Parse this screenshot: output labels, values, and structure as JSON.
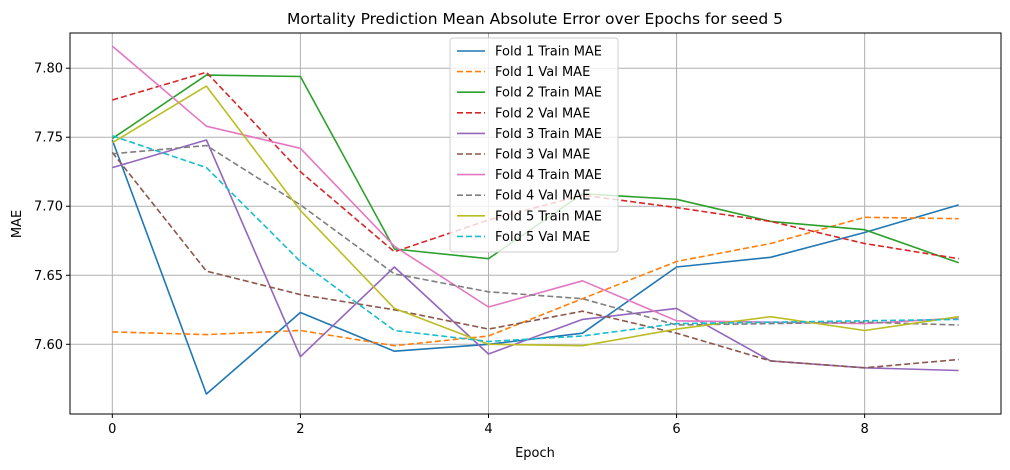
{
  "chart_data": {
    "type": "line",
    "title": "Mortality Prediction Mean Absolute Error over Epochs for seed 5",
    "xlabel": "Epoch",
    "ylabel": "MAE",
    "xlim": [
      -0.45,
      9.45
    ],
    "ylim": [
      7.5495,
      7.8255
    ],
    "xticks": [
      0,
      2,
      4,
      6,
      8
    ],
    "yticks": [
      7.6,
      7.65,
      7.7,
      7.75,
      7.8
    ],
    "ytick_labels": [
      "7.60",
      "7.65",
      "7.70",
      "7.75",
      "7.80"
    ],
    "grid": true,
    "legend_position": "top-center",
    "x": [
      0,
      1,
      2,
      3,
      4,
      5,
      6,
      7,
      8,
      9
    ],
    "series": [
      {
        "name": "Fold 1 Train MAE",
        "color": "#1f77b4",
        "style": "solid",
        "values": [
          7.748,
          7.564,
          7.623,
          7.595,
          7.6,
          7.608,
          7.656,
          7.663,
          7.681,
          7.701
        ]
      },
      {
        "name": "Fold 1 Val MAE",
        "color": "#ff7f0e",
        "style": "dashed",
        "values": [
          7.609,
          7.607,
          7.61,
          7.599,
          7.606,
          7.633,
          7.66,
          7.673,
          7.692,
          7.691
        ]
      },
      {
        "name": "Fold 2 Train MAE",
        "color": "#2ca02c",
        "style": "solid",
        "values": [
          7.749,
          7.795,
          7.794,
          7.669,
          7.662,
          7.709,
          7.705,
          7.689,
          7.683,
          7.659
        ]
      },
      {
        "name": "Fold 2 Val MAE",
        "color": "#d62728",
        "style": "dashed",
        "values": [
          7.777,
          7.797,
          7.725,
          7.667,
          7.69,
          7.708,
          7.699,
          7.689,
          7.673,
          7.662
        ]
      },
      {
        "name": "Fold 3 Train MAE",
        "color": "#9467bd",
        "style": "solid",
        "values": [
          7.728,
          7.748,
          7.591,
          7.656,
          7.593,
          7.618,
          7.626,
          7.588,
          7.583,
          7.581
        ]
      },
      {
        "name": "Fold 3 Val MAE",
        "color": "#8c564b",
        "style": "dashed",
        "values": [
          7.739,
          7.653,
          7.636,
          7.625,
          7.611,
          7.624,
          7.608,
          7.588,
          7.583,
          7.589
        ]
      },
      {
        "name": "Fold 4 Train MAE",
        "color": "#e377c2",
        "style": "solid",
        "values": [
          7.816,
          7.758,
          7.742,
          7.671,
          7.627,
          7.646,
          7.617,
          7.616,
          7.615,
          7.619
        ]
      },
      {
        "name": "Fold 4 Val MAE",
        "color": "#7f7f7f",
        "style": "dashed",
        "values": [
          7.738,
          7.744,
          7.701,
          7.651,
          7.638,
          7.633,
          7.614,
          7.615,
          7.616,
          7.614
        ]
      },
      {
        "name": "Fold 5 Train MAE",
        "color": "#bcbd22",
        "style": "solid",
        "values": [
          7.746,
          7.787,
          7.697,
          7.626,
          7.6,
          7.599,
          7.611,
          7.62,
          7.61,
          7.62
        ]
      },
      {
        "name": "Fold 5 Val MAE",
        "color": "#17becf",
        "style": "dashed",
        "values": [
          7.751,
          7.728,
          7.66,
          7.61,
          7.602,
          7.606,
          7.615,
          7.616,
          7.617,
          7.618
        ]
      }
    ]
  }
}
